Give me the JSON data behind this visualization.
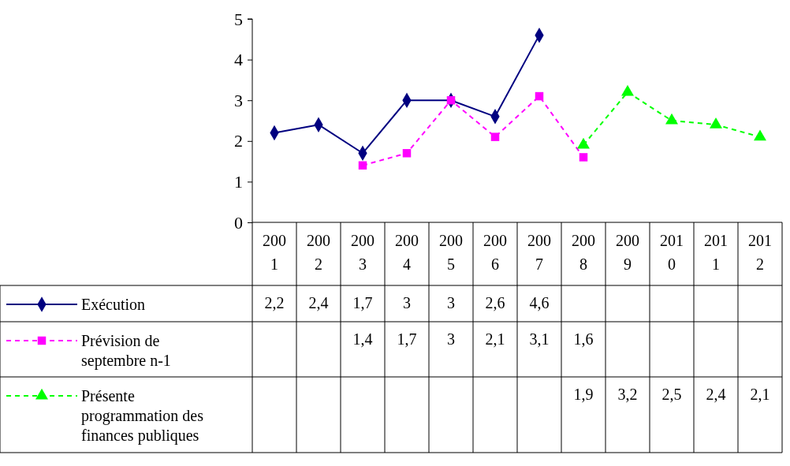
{
  "chart_data": {
    "type": "line",
    "categories": [
      "2001",
      "2002",
      "2003",
      "2004",
      "2005",
      "2006",
      "2007",
      "2008",
      "2009",
      "2010",
      "2011",
      "2012"
    ],
    "series": [
      {
        "name": "Exécution",
        "color": "#000080",
        "marker": "diamond",
        "line_style": "solid",
        "values": [
          2.2,
          2.4,
          1.7,
          3,
          3,
          2.6,
          4.6,
          null,
          null,
          null,
          null,
          null
        ],
        "value_labels": [
          "2,2",
          "2,4",
          "1,7",
          "3",
          "3",
          "2,6",
          "4,6",
          null,
          null,
          null,
          null,
          null
        ]
      },
      {
        "name": "Prévision de septembre n-1",
        "color": "#ff00ff",
        "marker": "square",
        "line_style": "dashed",
        "values": [
          null,
          null,
          1.4,
          1.7,
          3,
          2.1,
          3.1,
          1.6,
          null,
          null,
          null,
          null
        ],
        "value_labels": [
          null,
          null,
          "1,4",
          "1,7",
          "3",
          "2,1",
          "3,1",
          "1,6",
          null,
          null,
          null,
          null
        ]
      },
      {
        "name": "Présente programmation des finances publiques",
        "color": "#00ff00",
        "marker": "triangle",
        "line_style": "dashed",
        "values": [
          null,
          null,
          null,
          null,
          null,
          null,
          null,
          1.9,
          3.2,
          2.5,
          2.4,
          2.1
        ],
        "value_labels": [
          null,
          null,
          null,
          null,
          null,
          null,
          null,
          "1,9",
          "3,2",
          "2,5",
          "2,4",
          "2,1"
        ]
      }
    ],
    "ylim": [
      0,
      5
    ],
    "yticks": [
      0,
      1,
      2,
      3,
      4,
      5
    ],
    "grid": false,
    "legend": "bottom left"
  }
}
